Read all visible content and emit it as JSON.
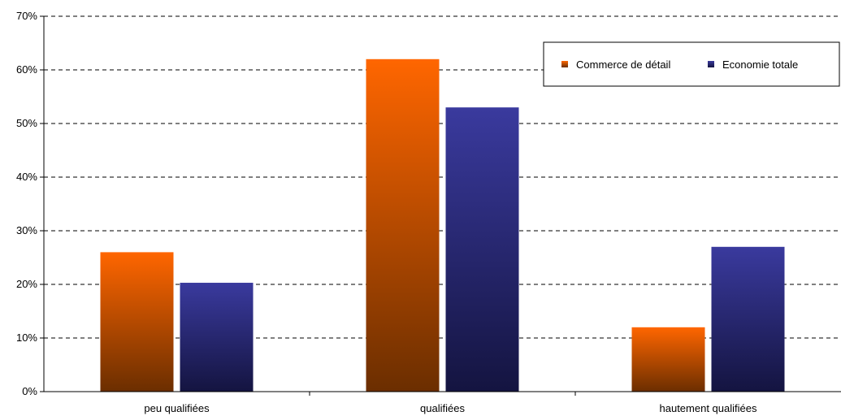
{
  "chart_data": {
    "type": "bar",
    "title": "",
    "xlabel": "",
    "ylabel": "",
    "categories": [
      "peu qualifiées",
      "qualifiées",
      "hautement qualifiées"
    ],
    "series": [
      {
        "name": "Commerce de détail",
        "values": [
          26,
          62,
          12
        ],
        "color": "#FF6600",
        "color_dark": "#6B2E00"
      },
      {
        "name": "Economie totale",
        "values": [
          20.3,
          53,
          27
        ],
        "color": "#3A3A9E",
        "color_dark": "#141440"
      }
    ],
    "ylim": [
      0,
      70
    ],
    "y_ticks": [
      "0%",
      "10%",
      "20%",
      "30%",
      "40%",
      "50%",
      "60%",
      "70%"
    ],
    "grid": "horizontal dashed",
    "legend_position": "top-right"
  }
}
